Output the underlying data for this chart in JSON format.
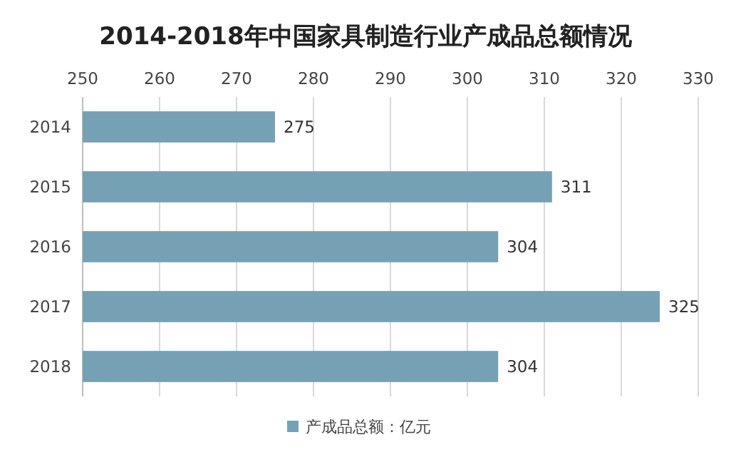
{
  "chart_data": {
    "type": "bar",
    "orientation": "horizontal",
    "title": "2014-2018年中国家具制造行业产成品总额情况",
    "categories": [
      "2014",
      "2015",
      "2016",
      "2017",
      "2018"
    ],
    "series": [
      {
        "name": "产成品总额：亿元",
        "color": "#76a1b5",
        "values": [
          275,
          311,
          304,
          325,
          304
        ]
      }
    ],
    "xlim": [
      250,
      330
    ],
    "xticks": [
      250,
      260,
      270,
      280,
      290,
      300,
      310,
      320,
      330
    ],
    "grid": "x",
    "legend": "bottom",
    "data_labels": true
  }
}
